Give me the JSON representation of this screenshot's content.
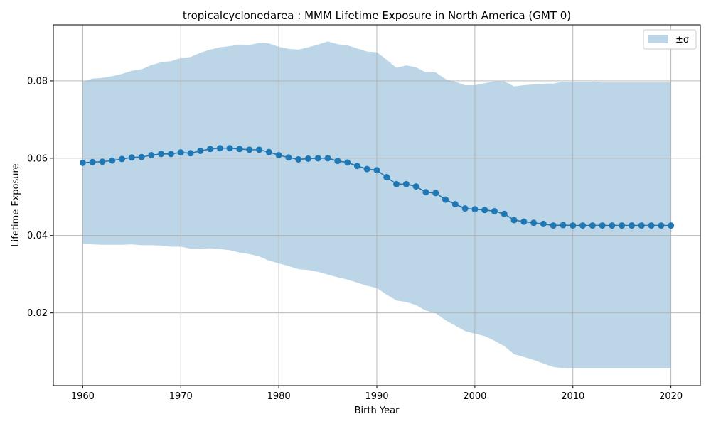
{
  "chart_data": {
    "type": "line",
    "title": "tropicalcyclonedarea : MMM Lifetime Exposure in North America (GMT 0)",
    "xlabel": "Birth Year",
    "ylabel": "Lifetime Exposure",
    "xlim": [
      1957,
      2023
    ],
    "ylim": [
      0.0012,
      0.0945
    ],
    "xticks": [
      1960,
      1970,
      1980,
      1990,
      2000,
      2010,
      2020
    ],
    "xtick_labels": [
      "1960",
      "1970",
      "1980",
      "1990",
      "2000",
      "2010",
      "2020"
    ],
    "yticks": [
      0.02,
      0.04,
      0.06,
      0.08
    ],
    "ytick_labels": [
      "0.02",
      "0.04",
      "0.06",
      "0.08"
    ],
    "grid": true,
    "legend": {
      "position": "top-right",
      "entries": [
        "±σ"
      ]
    },
    "colors": {
      "line": "#1f77b4",
      "band": "#bcd6e8",
      "grid": "#b0b0b0"
    },
    "x": [
      1960,
      1961,
      1962,
      1963,
      1964,
      1965,
      1966,
      1967,
      1968,
      1969,
      1970,
      1971,
      1972,
      1973,
      1974,
      1975,
      1976,
      1977,
      1978,
      1979,
      1980,
      1981,
      1982,
      1983,
      1984,
      1985,
      1986,
      1987,
      1988,
      1989,
      1990,
      1991,
      1992,
      1993,
      1994,
      1995,
      1996,
      1997,
      1998,
      1999,
      2000,
      2001,
      2002,
      2003,
      2004,
      2005,
      2006,
      2007,
      2008,
      2009,
      2010,
      2011,
      2012,
      2013,
      2014,
      2015,
      2016,
      2017,
      2018,
      2019,
      2020
    ],
    "series": [
      {
        "values": [
          0.0588,
          0.059,
          0.0591,
          0.0594,
          0.0598,
          0.0602,
          0.0603,
          0.0608,
          0.0611,
          0.0611,
          0.0615,
          0.0613,
          0.0619,
          0.0624,
          0.0626,
          0.0626,
          0.0624,
          0.0622,
          0.0622,
          0.0616,
          0.0608,
          0.0602,
          0.0597,
          0.0599,
          0.06,
          0.06,
          0.0593,
          0.0589,
          0.058,
          0.0572,
          0.0569,
          0.0551,
          0.0533,
          0.0533,
          0.0527,
          0.0512,
          0.051,
          0.0493,
          0.0481,
          0.047,
          0.0468,
          0.0466,
          0.0463,
          0.0456,
          0.044,
          0.0436,
          0.0433,
          0.043,
          0.0426,
          0.0427,
          0.0426,
          0.0426,
          0.0426,
          0.0426,
          0.0426,
          0.0426,
          0.0426,
          0.0426,
          0.0426,
          0.0426,
          0.0426
        ]
      }
    ],
    "band": {
      "name": "±σ",
      "upper": [
        0.0798,
        0.0806,
        0.0808,
        0.0812,
        0.0818,
        0.0826,
        0.083,
        0.0841,
        0.0848,
        0.0851,
        0.0859,
        0.0862,
        0.0873,
        0.0881,
        0.0887,
        0.089,
        0.0894,
        0.0893,
        0.0898,
        0.0897,
        0.0888,
        0.0883,
        0.0881,
        0.0887,
        0.0894,
        0.0902,
        0.0895,
        0.0892,
        0.0884,
        0.0876,
        0.0874,
        0.0855,
        0.0834,
        0.084,
        0.0835,
        0.0822,
        0.0822,
        0.0805,
        0.0798,
        0.0789,
        0.0789,
        0.0794,
        0.0799,
        0.0799,
        0.0786,
        0.0789,
        0.0791,
        0.0793,
        0.0793,
        0.0798,
        0.0798,
        0.0798,
        0.0798,
        0.0796,
        0.0796,
        0.0796,
        0.0796,
        0.0796,
        0.0796,
        0.0796,
        0.0796
      ],
      "lower": [
        0.0378,
        0.0377,
        0.0376,
        0.0376,
        0.0376,
        0.0377,
        0.0375,
        0.0375,
        0.0374,
        0.0371,
        0.0371,
        0.0366,
        0.0366,
        0.0367,
        0.0365,
        0.0362,
        0.0356,
        0.0352,
        0.0346,
        0.0335,
        0.0328,
        0.0321,
        0.0313,
        0.0311,
        0.0306,
        0.0299,
        0.0292,
        0.0286,
        0.0278,
        0.027,
        0.0264,
        0.0247,
        0.0232,
        0.0228,
        0.022,
        0.0206,
        0.0199,
        0.0181,
        0.0167,
        0.0153,
        0.0146,
        0.014,
        0.0128,
        0.0114,
        0.0093,
        0.0086,
        0.0078,
        0.0069,
        0.006,
        0.0057,
        0.0056,
        0.0056,
        0.0056,
        0.0056,
        0.0056,
        0.0056,
        0.0056,
        0.0056,
        0.0056,
        0.0056,
        0.0056
      ]
    }
  }
}
